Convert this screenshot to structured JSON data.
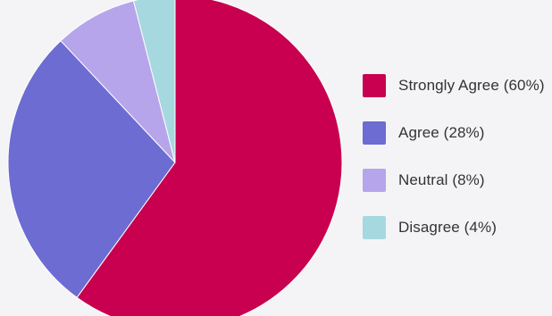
{
  "chart_data": {
    "type": "pie",
    "title": "",
    "legend_position": "right",
    "slices": [
      {
        "label": "Strongly Agree (60%)",
        "value": 60,
        "color": "#c8004f"
      },
      {
        "label": "Agree (28%)",
        "value": 28,
        "color": "#6c6cd2"
      },
      {
        "label": "Neutral (8%)",
        "value": 8,
        "color": "#b6a5ea"
      },
      {
        "label": "Disagree (4%)",
        "value": 4,
        "color": "#a6d8df"
      }
    ]
  }
}
